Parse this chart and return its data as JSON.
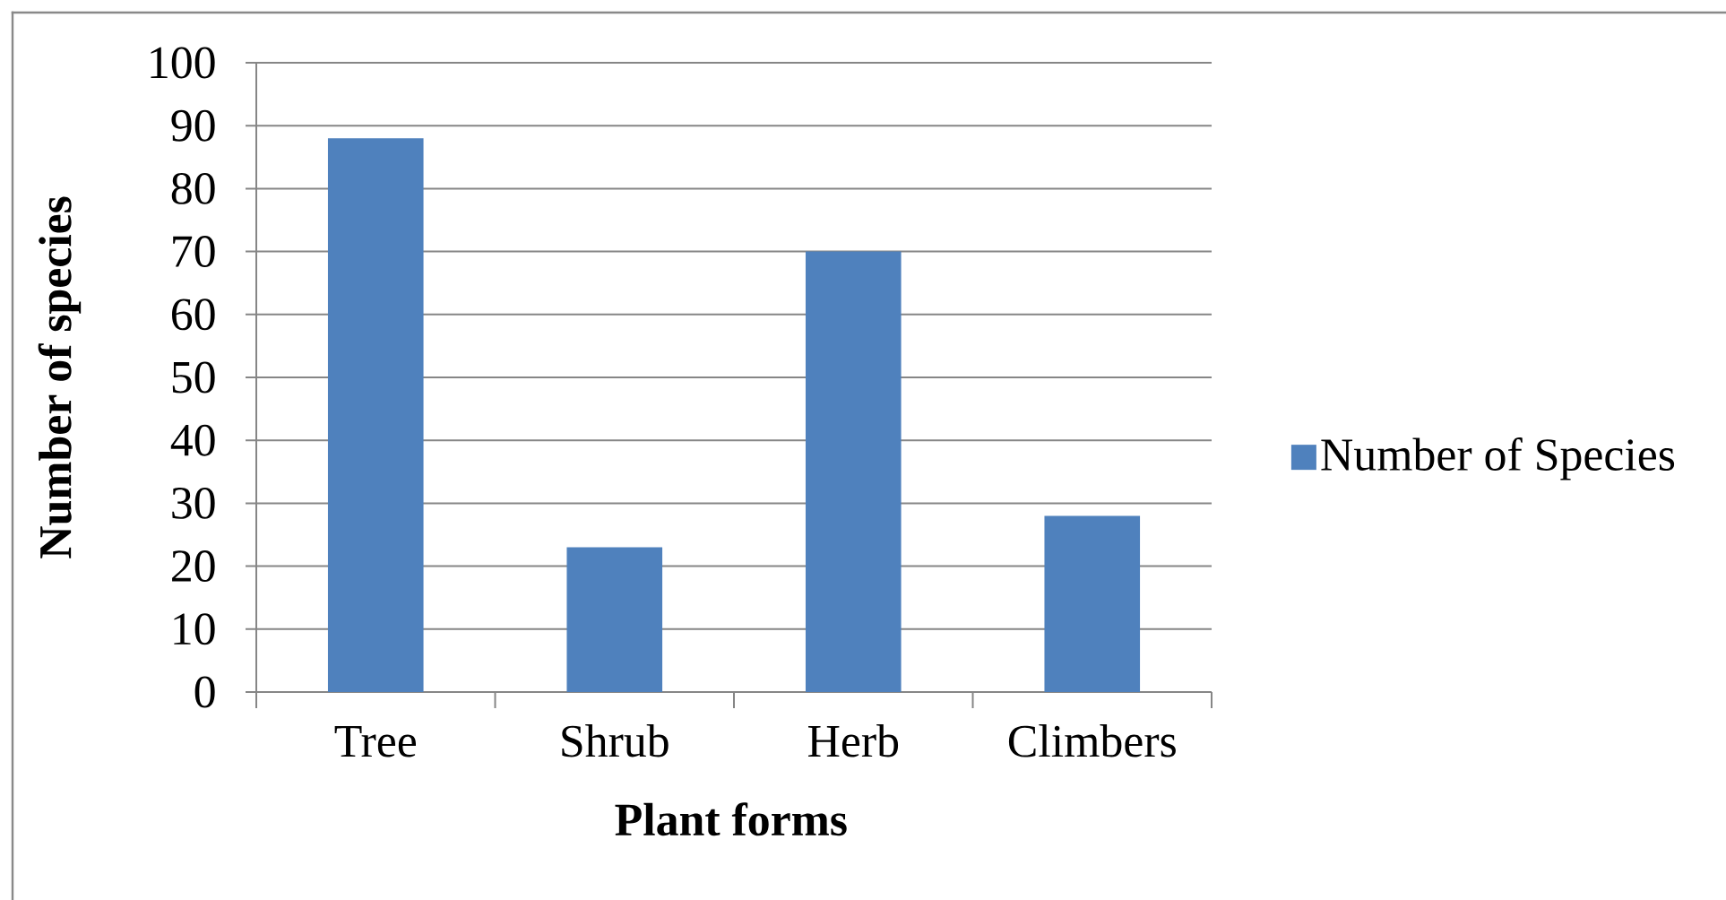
{
  "chart_data": {
    "type": "bar",
    "xlabel": "Plant forms",
    "ylabel": "Number of species",
    "categories": [
      "Tree",
      "Shrub",
      "Herb",
      "Climbers"
    ],
    "series": [
      {
        "name": "Number of Species",
        "color": "#4f81bd",
        "values": [
          88,
          23,
          70,
          28
        ]
      }
    ],
    "ylim": [
      0,
      100
    ],
    "yticks": [
      0,
      10,
      20,
      30,
      40,
      50,
      60,
      70,
      80,
      90,
      100
    ],
    "grid": "y",
    "legend": "right"
  }
}
